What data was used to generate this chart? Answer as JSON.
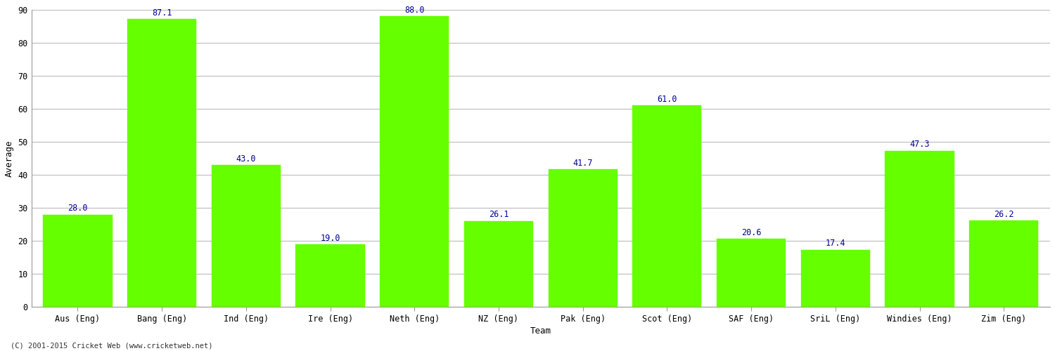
{
  "xlabel": "Team",
  "ylabel": "Average",
  "categories": [
    "Aus (Eng)",
    "Bang (Eng)",
    "Ind (Eng)",
    "Ire (Eng)",
    "Neth (Eng)",
    "NZ (Eng)",
    "Pak (Eng)",
    "Scot (Eng)",
    "SAF (Eng)",
    "SriL (Eng)",
    "Windies (Eng)",
    "Zim (Eng)"
  ],
  "values": [
    28.0,
    87.1,
    43.0,
    19.0,
    88.0,
    26.1,
    41.7,
    61.0,
    20.6,
    17.4,
    47.3,
    26.2
  ],
  "bar_color": "#66FF00",
  "bar_edge_color": "#66FF00",
  "label_color": "#000099",
  "background_color": "#FFFFFF",
  "plot_bg_color": "#FFFFFF",
  "grid_color": "#BBBBBB",
  "ylim": [
    0,
    90
  ],
  "yticks": [
    0,
    10,
    20,
    30,
    40,
    50,
    60,
    70,
    80,
    90
  ],
  "figsize": [
    15.0,
    5.0
  ],
  "dpi": 100,
  "label_fontsize": 8.5,
  "axis_label_fontsize": 9,
  "tick_fontsize": 8.5,
  "bar_width": 0.82,
  "footer_text": "(C) 2001-2015 Cricket Web (www.cricketweb.net)"
}
